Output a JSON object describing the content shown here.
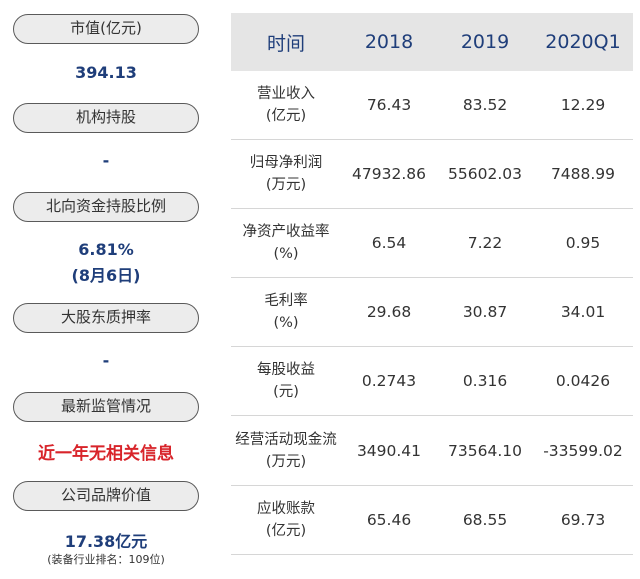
{
  "left": {
    "items": [
      {
        "label": "市值(亿元)",
        "value": "394.13"
      },
      {
        "label": "机构持股",
        "value": "-"
      },
      {
        "label": "北向资金持股比例",
        "value": "6.81%",
        "value2": "(8月6日)"
      },
      {
        "label": "大股东质押率",
        "value": "-"
      },
      {
        "label": "最新监管情况",
        "value": "近一年无相关信息"
      },
      {
        "label": "公司品牌价值",
        "value": "17.38亿元",
        "note": "(装备行业排名：109位)"
      }
    ]
  },
  "table": {
    "headers": [
      "时间",
      "2018",
      "2019",
      "2020Q1"
    ],
    "rows": [
      {
        "name": "营业收入",
        "unit": "(亿元)",
        "values": [
          "76.43",
          "83.52",
          "12.29"
        ]
      },
      {
        "name": "归母净利润",
        "unit": "(万元)",
        "values": [
          "47932.86",
          "55602.03",
          "7488.99"
        ]
      },
      {
        "name": "净资产收益率",
        "unit": "(%)",
        "values": [
          "6.54",
          "7.22",
          "0.95"
        ]
      },
      {
        "name": "毛利率",
        "unit": "(%)",
        "values": [
          "29.68",
          "30.87",
          "34.01"
        ]
      },
      {
        "name": "每股收益",
        "unit": "(元)",
        "values": [
          "0.2743",
          "0.316",
          "0.0426"
        ]
      },
      {
        "name": "经营活动现金流",
        "unit": "(万元)",
        "values": [
          "3490.41",
          "73564.10",
          "-33599.02"
        ]
      },
      {
        "name": "应收账款",
        "unit": "(亿元)",
        "values": [
          "65.46",
          "68.55",
          "69.73"
        ]
      }
    ]
  },
  "colors": {
    "accent": "#1f3e7a",
    "alert": "#d8242a",
    "header_bg": "#e5e5e5"
  }
}
